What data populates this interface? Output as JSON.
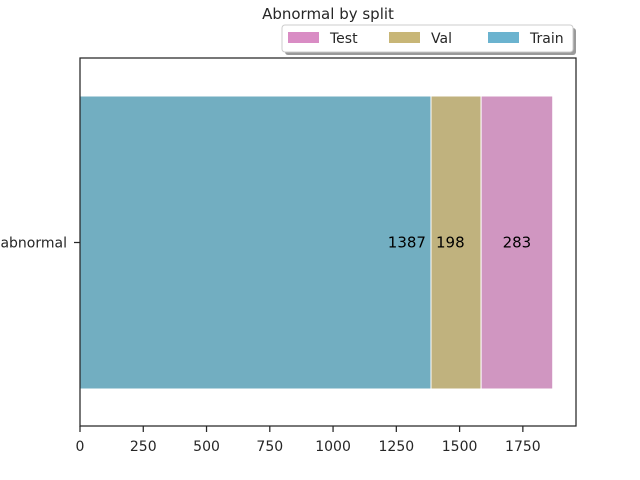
{
  "chart_data": {
    "type": "bar",
    "orientation": "horizontal",
    "stacked": true,
    "title": "Abnormal by split",
    "categories": [
      "abnormal"
    ],
    "series": [
      {
        "name": "Train",
        "values": [
          1387
        ],
        "color": "#72aec1",
        "label": "1387"
      },
      {
        "name": "Val",
        "values": [
          198
        ],
        "color": "#c0b27e",
        "label": "198"
      },
      {
        "name": "Test",
        "values": [
          283
        ],
        "color": "#d096c1",
        "label": "283"
      }
    ],
    "legend_order": [
      "Test",
      "Val",
      "Train"
    ],
    "legend_colors": {
      "Test": "#d98cc4",
      "Val": "#c8b677",
      "Train": "#6bb3cf"
    },
    "xlim": [
      0,
      1960
    ],
    "xticks": [
      0,
      250,
      500,
      750,
      1000,
      1250,
      1500,
      1750
    ],
    "xlabel": "",
    "ylabel": "",
    "grid": false,
    "legend_position": "top-right"
  }
}
